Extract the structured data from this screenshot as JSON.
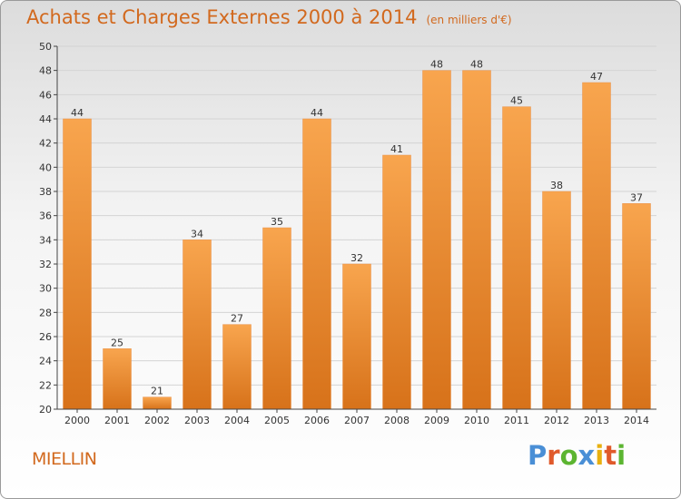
{
  "header": {
    "title": "Achats et Charges Externes 2000 à 2014",
    "subtitle": "(en milliers d'€)"
  },
  "footer": {
    "city": "MIELLIN",
    "logo": "Proxiti"
  },
  "colors": {
    "bar_light": "#f8a54e",
    "bar_dark": "#d7721a",
    "text": "#d2691e",
    "grid": "#d4d4d4",
    "axis": "#444444"
  },
  "logo_colors": [
    "#4a8fd6",
    "#e05a2b",
    "#5cb531",
    "#4a8fd6",
    "#e8b00f",
    "#e05a2b",
    "#5cb531"
  ],
  "chart_data": {
    "type": "bar",
    "title": "Achats et Charges Externes 2000 à 2014",
    "subtitle": "(en milliers d'€)",
    "categories": [
      "2000",
      "2001",
      "2002",
      "2003",
      "2004",
      "2005",
      "2006",
      "2007",
      "2008",
      "2009",
      "2010",
      "2011",
      "2012",
      "2013",
      "2014"
    ],
    "values": [
      44,
      25,
      21,
      34,
      27,
      35,
      44,
      32,
      41,
      48,
      48,
      45,
      38,
      47,
      37
    ],
    "ylim": [
      20,
      50
    ],
    "yticks": [
      20,
      22,
      24,
      26,
      28,
      30,
      32,
      34,
      36,
      38,
      40,
      42,
      44,
      46,
      48,
      50
    ],
    "grid": true,
    "data_labels": true
  }
}
